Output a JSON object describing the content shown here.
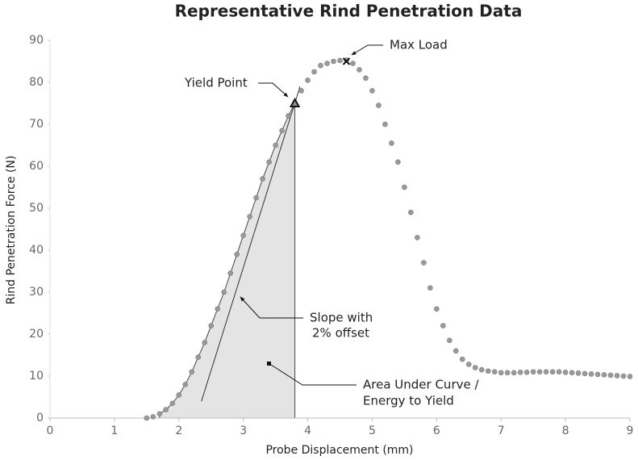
{
  "chart_data": {
    "type": "scatter",
    "title": "Representative Rind Penetration Data",
    "x_label": "Probe Displacement (mm)",
    "y_label": "Rind Penetration Force (N)",
    "xlim": [
      0,
      9
    ],
    "ylim": [
      0,
      90
    ],
    "xticks": [
      0,
      1,
      2,
      3,
      4,
      5,
      6,
      7,
      8,
      9
    ],
    "yticks": [
      0,
      10,
      20,
      30,
      40,
      50,
      60,
      70,
      80,
      90
    ],
    "grid": false,
    "series": [
      {
        "color": "#9a9a9a",
        "x": [
          1.5,
          1.6,
          1.7,
          1.8,
          1.9,
          2.0,
          2.1,
          2.2,
          2.3,
          2.4,
          2.5,
          2.6,
          2.7,
          2.8,
          2.9,
          3.0,
          3.1,
          3.2,
          3.3,
          3.4,
          3.5,
          3.6,
          3.7,
          3.8,
          3.9,
          4.0,
          4.1,
          4.2,
          4.3,
          4.4,
          4.5,
          4.6,
          4.7,
          4.8,
          4.9,
          5.0,
          5.1,
          5.2,
          5.3,
          5.4,
          5.5,
          5.6,
          5.7,
          5.8,
          5.9,
          6.0,
          6.1,
          6.2,
          6.3,
          6.4,
          6.5,
          6.6,
          6.7,
          6.8,
          6.9,
          7.0,
          7.1,
          7.2,
          7.3,
          7.4,
          7.5,
          7.6,
          7.7,
          7.8,
          7.9,
          8.0,
          8.1,
          8.2,
          8.3,
          8.4,
          8.5,
          8.6,
          8.7,
          8.8,
          8.9,
          9.0
        ],
        "values": [
          0,
          0.3,
          1,
          2,
          3.5,
          5.5,
          8,
          11,
          14.5,
          18,
          22,
          26,
          30,
          34.5,
          39,
          43.5,
          48,
          52.5,
          57,
          61,
          65,
          68.5,
          72,
          75,
          78,
          80.5,
          82.5,
          84,
          84.5,
          85,
          85.2,
          85.3,
          84.5,
          83,
          81,
          78,
          74.5,
          70,
          65.5,
          61,
          55,
          49,
          43,
          37,
          31,
          26,
          22,
          18.5,
          16,
          14,
          12.8,
          12,
          11.5,
          11.2,
          11,
          10.8,
          10.8,
          10.8,
          10.9,
          10.9,
          11,
          11,
          11,
          11,
          11,
          10.9,
          10.8,
          10.7,
          10.6,
          10.5,
          10.4,
          10.3,
          10.2,
          10.1,
          10,
          9.9
        ]
      }
    ],
    "markers": [
      {
        "label": "Yield Point",
        "x": 3.8,
        "y": 75,
        "symbol": "triangle"
      },
      {
        "label": "Max Load",
        "x": 4.6,
        "y": 85,
        "symbol": "cross"
      }
    ],
    "offset_line": {
      "x": [
        2.35,
        3.88
      ],
      "y": [
        4,
        79
      ]
    },
    "annotations": [
      {
        "lines": [
          "Slope with",
          "2% offset"
        ]
      },
      {
        "lines": [
          "Area Under Curve /",
          "Energy to Yield"
        ]
      }
    ]
  }
}
